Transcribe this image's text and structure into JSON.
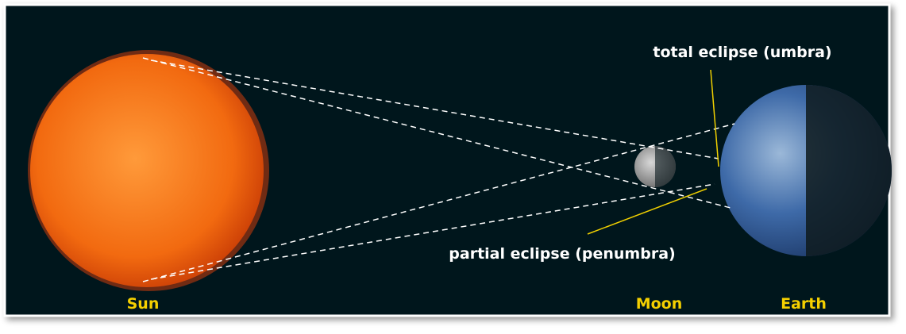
{
  "labels": {
    "sun": "Sun",
    "moon": "Moon",
    "earth": "Earth",
    "umbra": "total eclipse (umbra)",
    "penumbra": "partial eclipse (penumbra)"
  }
}
